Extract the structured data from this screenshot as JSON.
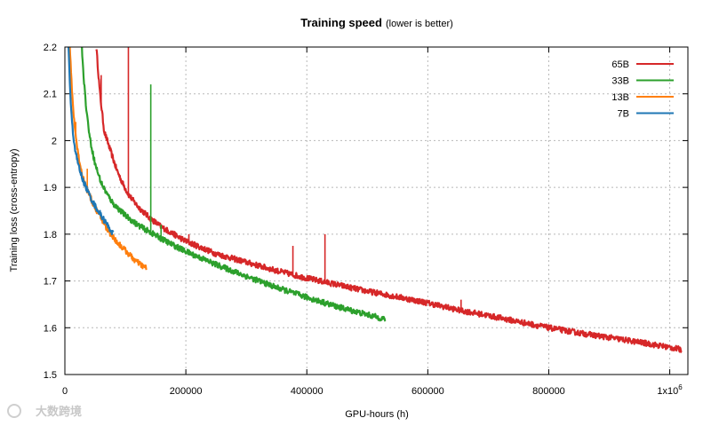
{
  "chart_data": {
    "type": "line",
    "title": "Training speed",
    "subtitle": "(lower is better)",
    "xlabel": "GPU-hours (h)",
    "ylabel": "Training loss (cross-entropy)",
    "xlim": [
      0,
      1030000
    ],
    "ylim": [
      1.5,
      2.2
    ],
    "x_ticks": [
      0,
      200000,
      400000,
      600000,
      800000,
      1000000
    ],
    "x_tick_labels": [
      "0",
      "200000",
      "400000",
      "600000",
      "800000",
      "1x10"
    ],
    "x_tick_exponent": "6",
    "y_ticks": [
      1.5,
      1.6,
      1.7,
      1.8,
      1.9,
      2.0,
      2.1,
      2.2
    ],
    "y_tick_labels": [
      "1.5",
      "1.6",
      "1.7",
      "1.8",
      "1.9",
      "2",
      "2.1",
      "2.2"
    ],
    "grid": true,
    "legend_position": "top-right",
    "series": [
      {
        "name": "65B",
        "color": "#d62728",
        "x": [
          52000,
          58000,
          65000,
          75000,
          85000,
          95000,
          105000,
          120000,
          140000,
          160000,
          180000,
          200000,
          250000,
          300000,
          350000,
          400000,
          450000,
          500000,
          550000,
          600000,
          650000,
          700000,
          750000,
          800000,
          850000,
          900000,
          950000,
          1000000,
          1020000
        ],
        "y": [
          2.2,
          2.1,
          2.02,
          1.98,
          1.94,
          1.91,
          1.885,
          1.86,
          1.835,
          1.815,
          1.8,
          1.785,
          1.758,
          1.74,
          1.722,
          1.706,
          1.692,
          1.678,
          1.666,
          1.653,
          1.638,
          1.626,
          1.613,
          1.6,
          1.589,
          1.579,
          1.569,
          1.558,
          1.553
        ],
        "spikes": [
          [
            60000,
            2.14
          ],
          [
            105000,
            2.2
          ],
          [
            160000,
            1.82
          ],
          [
            205000,
            1.8
          ],
          [
            377000,
            1.775
          ],
          [
            430000,
            1.8
          ],
          [
            655000,
            1.66
          ]
        ]
      },
      {
        "name": "33B",
        "color": "#2ca02c",
        "x": [
          28000,
          32000,
          36000,
          42000,
          50000,
          60000,
          70000,
          80000,
          100000,
          120000,
          140000,
          160000,
          180000,
          200000,
          250000,
          300000,
          350000,
          400000,
          450000,
          500000,
          530000
        ],
        "y": [
          2.2,
          2.12,
          2.06,
          2.0,
          1.95,
          1.91,
          1.885,
          1.865,
          1.84,
          1.82,
          1.805,
          1.79,
          1.776,
          1.763,
          1.735,
          1.71,
          1.686,
          1.665,
          1.645,
          1.628,
          1.618
        ],
        "spikes": [
          [
            142000,
            2.12
          ],
          [
            159000,
            1.82
          ]
        ]
      },
      {
        "name": "13B",
        "color": "#ff7f0e",
        "x": [
          8000,
          10000,
          13000,
          17000,
          22000,
          28000,
          35000,
          45000,
          55000,
          70000,
          85000,
          100000,
          115000,
          125000,
          135000
        ],
        "y": [
          2.2,
          2.15,
          2.08,
          2.02,
          1.97,
          1.93,
          1.9,
          1.87,
          1.845,
          1.81,
          1.785,
          1.765,
          1.745,
          1.735,
          1.727
        ],
        "spikes": [
          [
            18000,
            2.04
          ],
          [
            37000,
            1.94
          ]
        ]
      },
      {
        "name": "7B",
        "color": "#1f77b4",
        "x": [
          6000,
          8000,
          10000,
          13000,
          16000,
          20000,
          25000,
          30000,
          40000,
          50000,
          60000,
          70000,
          80000
        ],
        "y": [
          2.2,
          2.13,
          2.07,
          2.02,
          1.99,
          1.96,
          1.935,
          1.915,
          1.885,
          1.86,
          1.84,
          1.82,
          1.8
        ],
        "spikes": []
      }
    ]
  },
  "watermark": "大数跨境"
}
